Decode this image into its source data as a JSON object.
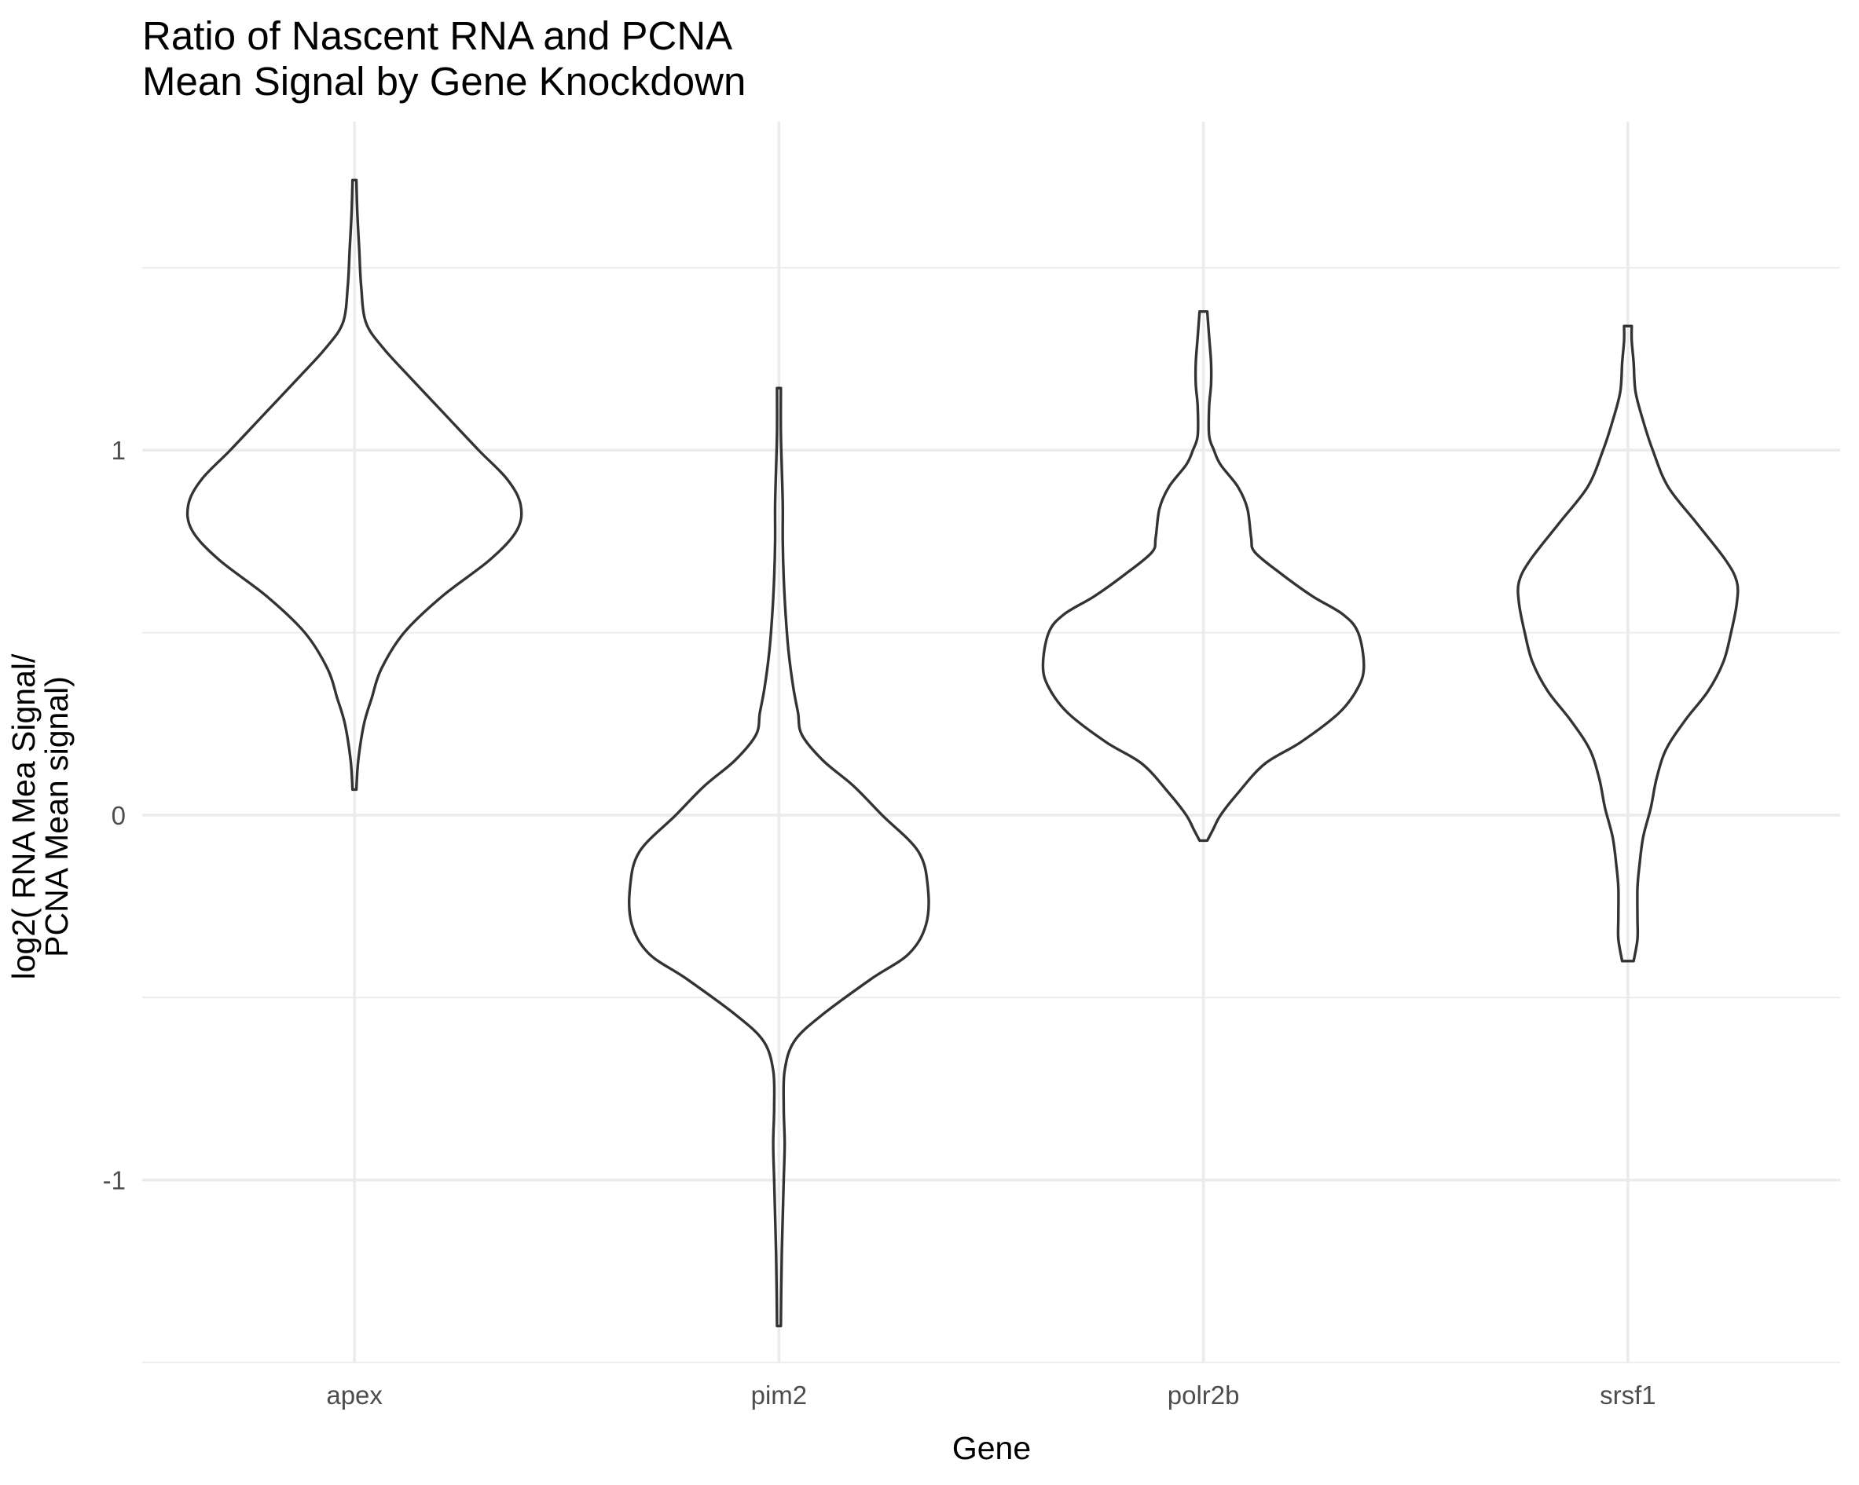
{
  "chart_data": {
    "type": "violin",
    "title_lines": [
      "Ratio of Nascent RNA and PCNA",
      "Mean Signal by Gene Knockdown"
    ],
    "xlabel": "Gene",
    "ylabel_lines": [
      "log2( RNA Mea Signal/",
      "PCNA Mean signal)"
    ],
    "categories": [
      "apex",
      "pim2",
      "polr2b",
      "srsf1"
    ],
    "y_ticks": [
      -1,
      0,
      1
    ],
    "y_tick_labels": [
      "-1",
      "0",
      "1"
    ],
    "ylim": [
      -1.5,
      1.9
    ],
    "grid": true,
    "legend": "none",
    "series": [
      {
        "name": "apex",
        "profile": [
          [
            0.07,
            0.01
          ],
          [
            0.15,
            0.02
          ],
          [
            0.25,
            0.05
          ],
          [
            0.32,
            0.09
          ],
          [
            0.4,
            0.14
          ],
          [
            0.5,
            0.26
          ],
          [
            0.6,
            0.46
          ],
          [
            0.7,
            0.71
          ],
          [
            0.78,
            0.85
          ],
          [
            0.85,
            0.87
          ],
          [
            0.92,
            0.8
          ],
          [
            1.0,
            0.65
          ],
          [
            1.1,
            0.47
          ],
          [
            1.2,
            0.29
          ],
          [
            1.28,
            0.15
          ],
          [
            1.35,
            0.06
          ],
          [
            1.45,
            0.035
          ],
          [
            1.55,
            0.025
          ],
          [
            1.65,
            0.015
          ],
          [
            1.74,
            0.01
          ]
        ]
      },
      {
        "name": "pim2",
        "profile": [
          [
            -1.4,
            0.01
          ],
          [
            -1.3,
            0.012
          ],
          [
            -1.2,
            0.015
          ],
          [
            -1.1,
            0.02
          ],
          [
            -1.0,
            0.025
          ],
          [
            -0.9,
            0.03
          ],
          [
            -0.8,
            0.025
          ],
          [
            -0.7,
            0.03
          ],
          [
            -0.62,
            0.08
          ],
          [
            -0.55,
            0.22
          ],
          [
            -0.45,
            0.48
          ],
          [
            -0.38,
            0.68
          ],
          [
            -0.3,
            0.77
          ],
          [
            -0.2,
            0.78
          ],
          [
            -0.1,
            0.73
          ],
          [
            0.0,
            0.54
          ],
          [
            0.08,
            0.39
          ],
          [
            0.15,
            0.23
          ],
          [
            0.22,
            0.12
          ],
          [
            0.28,
            0.1
          ],
          [
            0.35,
            0.075
          ],
          [
            0.45,
            0.05
          ],
          [
            0.55,
            0.035
          ],
          [
            0.65,
            0.025
          ],
          [
            0.75,
            0.02
          ],
          [
            0.85,
            0.02
          ],
          [
            0.95,
            0.015
          ],
          [
            1.05,
            0.01
          ],
          [
            1.17,
            0.01
          ]
        ]
      },
      {
        "name": "polr2b",
        "profile": [
          [
            -0.07,
            0.02
          ],
          [
            -0.04,
            0.05
          ],
          [
            0.0,
            0.09
          ],
          [
            0.06,
            0.18
          ],
          [
            0.14,
            0.32
          ],
          [
            0.2,
            0.51
          ],
          [
            0.28,
            0.71
          ],
          [
            0.35,
            0.81
          ],
          [
            0.41,
            0.84
          ],
          [
            0.5,
            0.81
          ],
          [
            0.55,
            0.73
          ],
          [
            0.6,
            0.57
          ],
          [
            0.66,
            0.41
          ],
          [
            0.72,
            0.27
          ],
          [
            0.76,
            0.25
          ],
          [
            0.84,
            0.23
          ],
          [
            0.9,
            0.18
          ],
          [
            0.96,
            0.09
          ],
          [
            1.0,
            0.055
          ],
          [
            1.04,
            0.03
          ],
          [
            1.12,
            0.03
          ],
          [
            1.18,
            0.04
          ],
          [
            1.24,
            0.04
          ],
          [
            1.31,
            0.03
          ],
          [
            1.38,
            0.02
          ]
        ]
      },
      {
        "name": "srsf1",
        "profile": [
          [
            -0.4,
            0.03
          ],
          [
            -0.34,
            0.05
          ],
          [
            -0.28,
            0.05
          ],
          [
            -0.2,
            0.05
          ],
          [
            -0.14,
            0.06
          ],
          [
            -0.06,
            0.08
          ],
          [
            0.02,
            0.12
          ],
          [
            0.1,
            0.15
          ],
          [
            0.18,
            0.2
          ],
          [
            0.26,
            0.3
          ],
          [
            0.34,
            0.42
          ],
          [
            0.42,
            0.5
          ],
          [
            0.5,
            0.54
          ],
          [
            0.58,
            0.57
          ],
          [
            0.64,
            0.57
          ],
          [
            0.7,
            0.51
          ],
          [
            0.8,
            0.36
          ],
          [
            0.9,
            0.21
          ],
          [
            1.0,
            0.13
          ],
          [
            1.08,
            0.08
          ],
          [
            1.16,
            0.04
          ],
          [
            1.24,
            0.03
          ],
          [
            1.3,
            0.02
          ],
          [
            1.34,
            0.02
          ]
        ]
      }
    ]
  }
}
